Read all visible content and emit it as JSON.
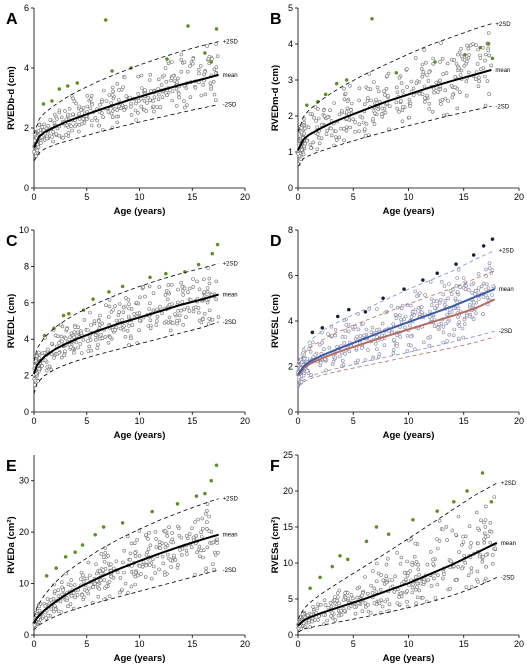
{
  "figure": {
    "curve_labels": {
      "upper": "+2SD",
      "mean": "mean",
      "lower": "-2SD"
    }
  },
  "chart_data": [
    {
      "type": "scatter",
      "panel": "A",
      "ylabel": "RVEDb-d (cm)",
      "xlabel": "Age (years)",
      "xlim": [
        0,
        20
      ],
      "ylim": [
        0,
        6
      ],
      "xticks": [
        0,
        5,
        10,
        15,
        20
      ],
      "yticks": [
        0,
        2,
        4,
        6
      ],
      "curves": {
        "x": [
          0,
          0.5,
          1,
          2,
          3,
          4,
          6,
          8,
          10,
          12,
          14,
          16,
          17.5
        ],
        "mean": [
          1.35,
          1.72,
          1.86,
          2.04,
          2.2,
          2.33,
          2.58,
          2.82,
          3.04,
          3.25,
          3.45,
          3.63,
          3.77
        ],
        "upper": [
          1.8,
          2.3,
          2.5,
          2.77,
          3.0,
          3.2,
          3.54,
          3.83,
          4.1,
          4.34,
          4.56,
          4.75,
          4.88
        ],
        "lower": [
          0.9,
          1.18,
          1.3,
          1.45,
          1.55,
          1.65,
          1.85,
          2.03,
          2.2,
          2.36,
          2.52,
          2.67,
          2.78
        ]
      },
      "mean_color": "#000000",
      "point_color": "#777777",
      "outliers": [
        [
          0.9,
          2.8
        ],
        [
          1.7,
          2.9
        ],
        [
          2.4,
          3.3
        ],
        [
          3.2,
          3.4
        ],
        [
          4.1,
          3.5
        ],
        [
          6.8,
          5.6
        ],
        [
          7.4,
          3.9
        ],
        [
          9.2,
          4.0
        ],
        [
          12.6,
          4.3
        ],
        [
          14.6,
          5.4
        ],
        [
          16.2,
          4.5
        ],
        [
          17.3,
          5.3
        ],
        [
          16.8,
          4.2
        ]
      ],
      "outlier_color": "#5b8f1f",
      "point_count": 360
    },
    {
      "type": "scatter",
      "panel": "B",
      "ylabel": "RVEDm-d (cm)",
      "xlabel": "Age (years)",
      "xlim": [
        0,
        20
      ],
      "ylim": [
        0,
        5
      ],
      "xticks": [
        0,
        5,
        10,
        15,
        20
      ],
      "yticks": [
        0,
        1,
        2,
        3,
        4,
        5
      ],
      "curves": {
        "x": [
          0,
          0.5,
          1,
          2,
          3,
          4,
          6,
          8,
          10,
          12,
          14,
          16,
          17.5
        ],
        "mean": [
          1.05,
          1.35,
          1.48,
          1.65,
          1.8,
          1.93,
          2.17,
          2.4,
          2.6,
          2.8,
          2.98,
          3.15,
          3.28
        ],
        "upper": [
          1.55,
          1.98,
          2.17,
          2.42,
          2.63,
          2.82,
          3.15,
          3.44,
          3.72,
          3.98,
          4.2,
          4.42,
          4.56
        ],
        "lower": [
          0.6,
          0.82,
          0.9,
          1.02,
          1.12,
          1.22,
          1.4,
          1.57,
          1.73,
          1.88,
          2.03,
          2.17,
          2.27
        ]
      },
      "mean_color": "#000000",
      "point_color": "#777777",
      "outliers": [
        [
          0.8,
          2.3
        ],
        [
          1.8,
          2.4
        ],
        [
          2.5,
          2.6
        ],
        [
          3.5,
          2.9
        ],
        [
          4.4,
          3.0
        ],
        [
          6.7,
          4.7
        ],
        [
          8.9,
          3.2
        ],
        [
          12.4,
          3.5
        ],
        [
          15.1,
          3.7
        ],
        [
          16.5,
          3.9
        ],
        [
          17.2,
          4.0
        ],
        [
          17.6,
          3.6
        ]
      ],
      "outlier_color": "#5b8f1f",
      "point_count": 360
    },
    {
      "type": "scatter",
      "panel": "C",
      "ylabel": "RVEDL (cm)",
      "xlabel": "Age (years)",
      "xlim": [
        0,
        20
      ],
      "ylim": [
        0,
        10
      ],
      "xticks": [
        0,
        5,
        10,
        15,
        20
      ],
      "yticks": [
        0,
        2,
        4,
        6,
        8,
        10
      ],
      "curves": {
        "x": [
          0,
          0.3,
          1,
          2,
          3,
          4,
          6,
          8,
          10,
          12,
          14,
          16,
          17.5
        ],
        "mean": [
          2.1,
          2.6,
          3.05,
          3.45,
          3.75,
          4.0,
          4.45,
          4.85,
          5.2,
          5.55,
          5.9,
          6.2,
          6.45
        ],
        "upper": [
          2.8,
          3.5,
          4.1,
          4.65,
          5.05,
          5.4,
          5.98,
          6.48,
          6.9,
          7.28,
          7.62,
          7.92,
          8.15
        ],
        "lower": [
          1.0,
          1.6,
          2.0,
          2.35,
          2.6,
          2.8,
          3.15,
          3.45,
          3.75,
          4.05,
          4.35,
          4.65,
          4.95
        ]
      },
      "mean_color": "#000000",
      "point_color": "#777777",
      "outliers": [
        [
          1.0,
          4.2
        ],
        [
          1.9,
          4.6
        ],
        [
          2.8,
          5.3
        ],
        [
          3.3,
          5.4
        ],
        [
          4.7,
          5.6
        ],
        [
          5.6,
          6.2
        ],
        [
          7.1,
          6.6
        ],
        [
          8.4,
          6.9
        ],
        [
          11.0,
          7.4
        ],
        [
          12.5,
          7.6
        ],
        [
          14.3,
          7.7
        ],
        [
          15.6,
          8.1
        ],
        [
          16.9,
          8.7
        ],
        [
          17.4,
          9.2
        ]
      ],
      "outlier_color": "#5b8f1f",
      "point_count": 360
    },
    {
      "type": "scatter",
      "panel": "D",
      "ylabel": "RVESL (cm)",
      "xlabel": "Age (years)",
      "xlim": [
        0,
        20
      ],
      "ylim": [
        0,
        8
      ],
      "xticks": [
        0,
        5,
        10,
        15,
        20
      ],
      "yticks": [
        0,
        2,
        4,
        6,
        8
      ],
      "curves": {
        "x": [
          0,
          0.5,
          1,
          2,
          3,
          4,
          6,
          8,
          10,
          12,
          14,
          16,
          17.8
        ],
        "mean": [
          1.65,
          2.0,
          2.2,
          2.45,
          2.65,
          2.85,
          3.22,
          3.6,
          3.95,
          4.3,
          4.65,
          5.05,
          5.4
        ],
        "upper": [
          2.2,
          2.8,
          3.1,
          3.5,
          3.8,
          4.05,
          4.5,
          4.95,
          5.4,
          5.8,
          6.2,
          6.7,
          7.1
        ],
        "lower": [
          1.1,
          1.4,
          1.55,
          1.72,
          1.85,
          1.97,
          2.2,
          2.42,
          2.62,
          2.85,
          3.08,
          3.32,
          3.55
        ]
      },
      "mean_color": "#3b5aa8",
      "extra_series": [
        {
          "mean": [
            1.6,
            1.92,
            2.1,
            2.33,
            2.52,
            2.7,
            3.02,
            3.33,
            3.63,
            3.93,
            4.23,
            4.55,
            4.95
          ],
          "upper": [
            2.05,
            2.55,
            2.8,
            3.12,
            3.38,
            3.6,
            4.0,
            4.38,
            4.75,
            5.1,
            5.45,
            5.85,
            6.2
          ],
          "lower": [
            1.15,
            1.32,
            1.45,
            1.6,
            1.72,
            1.83,
            2.03,
            2.23,
            2.43,
            2.63,
            2.83,
            3.05,
            3.3
          ],
          "color": "#b56a5f"
        }
      ],
      "band_color": "#7a8ecb",
      "point_color": "#8a8aa8",
      "outliers": [
        [
          1.3,
          3.5
        ],
        [
          2.2,
          3.7
        ],
        [
          3.6,
          4.2
        ],
        [
          4.6,
          4.5
        ],
        [
          6.1,
          4.4
        ],
        [
          7.7,
          5.0
        ],
        [
          9.6,
          5.4
        ],
        [
          11.3,
          5.8
        ],
        [
          12.6,
          6.1
        ],
        [
          14.3,
          6.5
        ],
        [
          15.9,
          6.9
        ],
        [
          16.8,
          7.3
        ],
        [
          17.6,
          7.6
        ]
      ],
      "outlier_color": "#1b1b3a",
      "point_count": 420
    },
    {
      "type": "scatter",
      "panel": "E",
      "ylabel": "RVEDa (cm²)",
      "xlabel": "Age (years)",
      "xlim": [
        0,
        20
      ],
      "ylim": [
        0,
        35
      ],
      "xticks": [
        0,
        5,
        10,
        15,
        20
      ],
      "yticks": [
        0,
        10,
        20,
        30
      ],
      "curves": {
        "x": [
          0,
          0.3,
          1,
          2,
          3,
          4,
          6,
          8,
          10,
          12,
          14,
          16,
          17.5
        ],
        "mean": [
          2.3,
          3.4,
          4.8,
          6.4,
          7.8,
          9.0,
          11.0,
          12.8,
          14.4,
          15.9,
          17.3,
          18.6,
          19.5
        ],
        "upper": [
          3.5,
          5.5,
          7.8,
          10.2,
          12.1,
          13.6,
          16.3,
          18.6,
          20.6,
          22.4,
          24.0,
          25.5,
          26.5
        ],
        "lower": [
          1.0,
          1.7,
          2.6,
          3.6,
          4.4,
          5.1,
          6.3,
          7.4,
          8.5,
          9.6,
          10.7,
          11.8,
          12.6
        ]
      },
      "mean_color": "#000000",
      "point_color": "#777777",
      "outliers": [
        [
          1.2,
          11.5
        ],
        [
          2.1,
          13.0
        ],
        [
          3.0,
          15.2
        ],
        [
          3.9,
          16.1
        ],
        [
          4.6,
          17.5
        ],
        [
          5.8,
          19.5
        ],
        [
          6.6,
          21.0
        ],
        [
          8.4,
          21.8
        ],
        [
          11.2,
          24.0
        ],
        [
          13.6,
          25.5
        ],
        [
          15.4,
          27.0
        ],
        [
          16.8,
          30.0
        ],
        [
          17.3,
          33.0
        ],
        [
          16.2,
          27.5
        ]
      ],
      "outlier_color": "#5b8f1f",
      "point_count": 360
    },
    {
      "type": "scatter",
      "panel": "F",
      "ylabel": "RVESa (cm²)",
      "xlabel": "Age (years)",
      "xlim": [
        0,
        20
      ],
      "ylim": [
        0,
        25
      ],
      "xticks": [
        0,
        5,
        10,
        15,
        20
      ],
      "yticks": [
        0,
        5,
        10,
        15,
        20,
        25
      ],
      "curves": {
        "x": [
          0,
          0.5,
          1,
          2,
          3,
          4,
          6,
          8,
          10,
          12,
          14,
          16,
          18
        ],
        "mean": [
          1.3,
          2.0,
          2.4,
          3.0,
          3.5,
          4.0,
          5.0,
          6.1,
          7.2,
          8.5,
          9.8,
          11.3,
          12.8
        ],
        "upper": [
          2.2,
          3.6,
          4.4,
          5.6,
          6.6,
          7.6,
          9.5,
          11.4,
          13.4,
          15.4,
          17.4,
          19.4,
          21.1
        ],
        "lower": [
          0.4,
          0.8,
          1.0,
          1.3,
          1.6,
          1.9,
          2.5,
          3.1,
          3.8,
          4.6,
          5.5,
          6.6,
          8.0
        ]
      },
      "mean_color": "#000000",
      "point_color": "#777777",
      "outliers": [
        [
          1.1,
          6.5
        ],
        [
          2.0,
          8.0
        ],
        [
          3.1,
          9.5
        ],
        [
          3.8,
          11.0
        ],
        [
          4.5,
          10.5
        ],
        [
          6.2,
          13.0
        ],
        [
          7.1,
          15.0
        ],
        [
          8.2,
          14.0
        ],
        [
          10.4,
          16.0
        ],
        [
          12.6,
          17.2
        ],
        [
          14.1,
          18.5
        ],
        [
          15.3,
          20.0
        ],
        [
          16.7,
          22.5
        ],
        [
          17.5,
          18.5
        ]
      ],
      "outlier_color": "#5b8f1f",
      "point_count": 360
    }
  ]
}
